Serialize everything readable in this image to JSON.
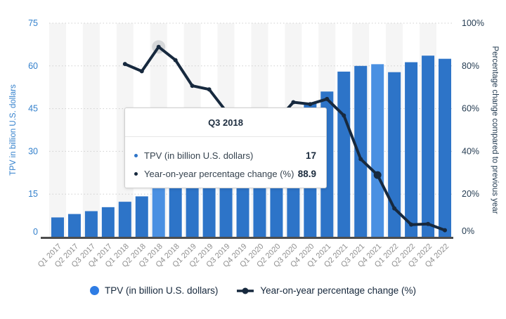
{
  "chart_data": {
    "type": "combo-bar-line",
    "categories": [
      "Q1 2017",
      "Q2 2017",
      "Q3 2017",
      "Q4 2017",
      "Q1 2018",
      "Q2 2018",
      "Q3 2018",
      "Q4 2018",
      "Q1 2019",
      "Q2 2019",
      "Q3 2019",
      "Q4 2019",
      "Q1 2020",
      "Q2 2020",
      "Q3 2020",
      "Q4 2020",
      "Q1 2021",
      "Q2 2021",
      "Q3 2021",
      "Q4 2021",
      "Q1 2022",
      "Q2 2022",
      "Q3 2022",
      "Q4 2022"
    ],
    "series": [
      {
        "name": "TPV (in billion U.S. dollars)",
        "type": "bar",
        "values": [
          6.8,
          8,
          9,
          10.4,
          12.3,
          14.2,
          17,
          19,
          21,
          24,
          27,
          29,
          31,
          37,
          44,
          47,
          51,
          58,
          60,
          60.6,
          57.8,
          61.3,
          63.6,
          62.5
        ],
        "color": "#2d74c8",
        "highlight_color": "#4a90e2",
        "highlighted_categories": [
          "Q3 2018",
          "Q4 2021"
        ]
      },
      {
        "name": "Year-on-year percentage change (%)",
        "type": "line",
        "start_category": "Q1 2018",
        "values": [
          80.9,
          77.5,
          88.9,
          82.7,
          70.7,
          69.0,
          58.8,
          52.6,
          47.6,
          54.2,
          63.0,
          62.1,
          64.5,
          56.8,
          36.4,
          28.9,
          13.3,
          5.7,
          6.0,
          3.1
        ],
        "color": "#17293e",
        "halo_point": "Q3 2018",
        "emphasized_point": "Q4 2021"
      }
    ],
    "y_left": {
      "title": "TPV in billion U.S. dollars",
      "ticks": [
        0,
        15,
        30,
        45,
        60,
        75
      ],
      "max": 75,
      "color": "#3380cc"
    },
    "y_right": {
      "title": "Percentage change compared to previous year",
      "ticks": [
        "0%",
        "20%",
        "40%",
        "60%",
        "80%",
        "100%"
      ],
      "tick_values": [
        0,
        20,
        40,
        60,
        80,
        100
      ],
      "max": 100,
      "color": "#253c52"
    },
    "x_label_color": "#8f8f8f",
    "grid": "dotted-horizontal",
    "grid_color": "#cfcfcf",
    "plot_band_color": "#f5f5f5",
    "baseline_color": "#4d4d4d",
    "legend_position": "bottom-center"
  },
  "tooltip": {
    "title": "Q3 2018",
    "rows": [
      {
        "label": "TPV (in billion U.S. dollars)",
        "value": "17",
        "bullet_color": "#2d74c8"
      },
      {
        "label": "Year-on-year percentage change (%)",
        "value": "88.9",
        "bullet_color": "#17293e"
      }
    ]
  },
  "legend": [
    {
      "label": "TPV (in billion U.S. dollars)",
      "marker": "circle",
      "color": "#2e7ce4"
    },
    {
      "label": "Year-on-year percentage change (%)",
      "marker": "line-dot",
      "color": "#17293e"
    }
  ]
}
